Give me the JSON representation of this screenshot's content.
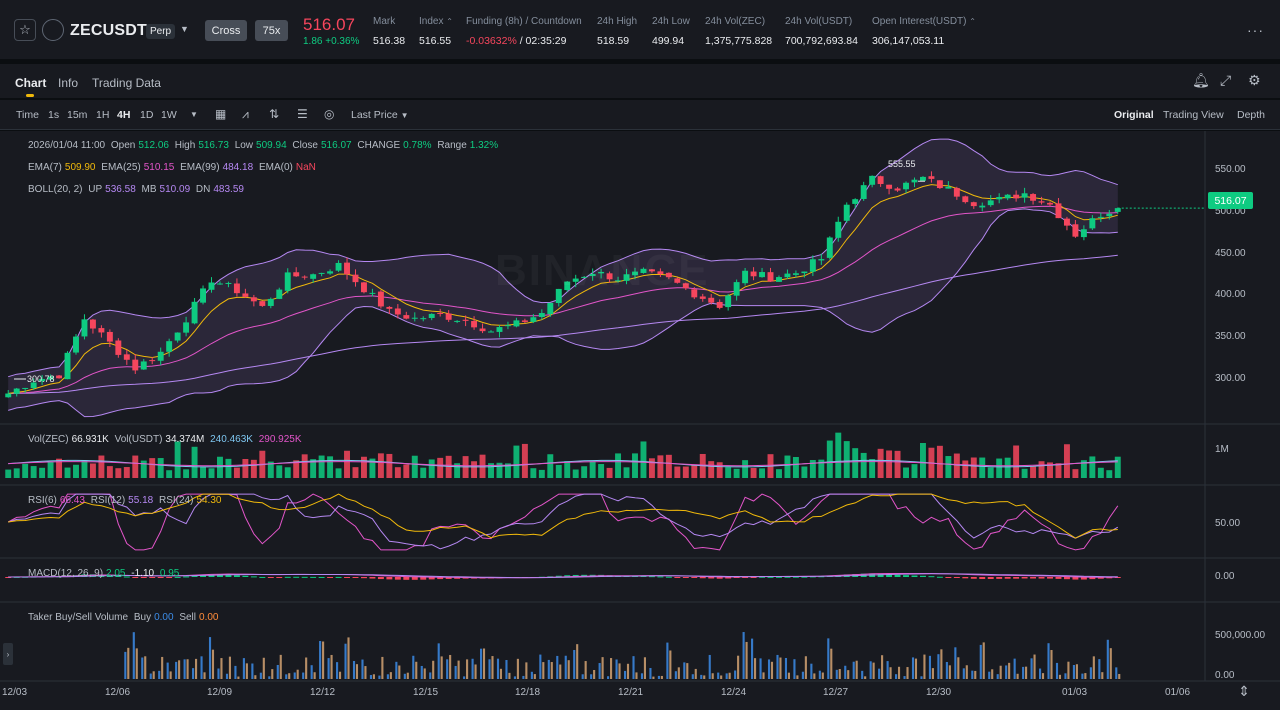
{
  "header": {
    "symbol": "ZECUSDT",
    "contract_type": "Perp",
    "margin_mode": "Cross",
    "leverage": "75x",
    "last_price": "516.07",
    "price_change": "1.86 +0.36%",
    "stats": [
      {
        "label": "Mark",
        "value": "516.38",
        "highlight": false
      },
      {
        "label": "Index",
        "value": "516.55",
        "highlight": false
      },
      {
        "label": "Funding (8h) / Countdown",
        "value": "-0.03632%",
        "extra": " / 02:35:29",
        "highlight": true
      },
      {
        "label": "24h High",
        "value": "518.59",
        "highlight": false
      },
      {
        "label": "24h Low",
        "value": "499.94",
        "highlight": false
      },
      {
        "label": "24h Vol(ZEC)",
        "value": "1,375,775.828",
        "highlight": false
      },
      {
        "label": "24h Vol(USDT)",
        "value": "700,792,693.84",
        "highlight": false
      },
      {
        "label": "Open Interest(USDT)",
        "value": "306,147,053.11",
        "highlight": false
      }
    ]
  },
  "tabs": [
    {
      "label": "Chart",
      "active": true
    },
    {
      "label": "Info",
      "active": false
    },
    {
      "label": "Trading Data",
      "active": false
    }
  ],
  "toolbar": {
    "time_label": "Time",
    "intervals": [
      "1s",
      "15m",
      "1H",
      "4H",
      "1D",
      "1W"
    ],
    "active_interval": "4H",
    "price_type": "Last Price",
    "views": [
      "Original",
      "Trading View",
      "Depth"
    ],
    "active_view": "Original"
  },
  "legend": {
    "candle_date": "2026/01/04 11:00",
    "open_label": "Open",
    "open": "512.06",
    "high_label": "High",
    "high": "516.73",
    "low_label": "Low",
    "low": "509.94",
    "close_label": "Close",
    "close": "516.07",
    "change_label": "CHANGE",
    "change": "0.78%",
    "range_label": "Range",
    "range": "1.32%",
    "ema7_label": "EMA(7)",
    "ema7": "509.90",
    "ema25_label": "EMA(25)",
    "ema25": "510.15",
    "ema99_label": "EMA(99)",
    "ema99": "484.18",
    "ema0_label": "EMA(0)",
    "ema0": "NaN",
    "boll_label": "BOLL(20, 2)",
    "up_label": "UP",
    "up": "536.58",
    "mb_label": "MB",
    "mb": "510.09",
    "dn_label": "DN",
    "dn": "483.59",
    "vol_label": "Vol(ZEC)",
    "vol_zec": "66.931K",
    "volusdt_label": "Vol(USDT)",
    "vol_usdt": "34.374M",
    "vol_ma1": "240.463K",
    "vol_ma2": "290.925K",
    "rsi6_label": "RSI(6)",
    "rsi6": "66.43",
    "rsi12_label": "RSI(12)",
    "rsi12": "55.18",
    "rsi24_label": "RSI(24)",
    "rsi24": "54.30",
    "macd_label": "MACD(12, 26, 9)",
    "macd_1": "2.05",
    "macd_2": "-1.10",
    "macd_3": "0.95",
    "taker_label": "Taker Buy/Sell Volume",
    "buy_label": "Buy",
    "buy": "0.00",
    "sell_label": "Sell",
    "sell": "0.00"
  },
  "price_axis": [
    "550.00",
    "500.00",
    "450.00",
    "400.00",
    "350.00",
    "300.00"
  ],
  "current_price_tag": "516.07",
  "high_marker": "555.55",
  "low_marker": "300.78",
  "volume_axis": [
    "1M"
  ],
  "rsi_axis": [
    "50.00"
  ],
  "macd_axis": [
    "0.00"
  ],
  "taker_axis": [
    "500,000.00",
    "0.00"
  ],
  "date_axis": [
    "12/03",
    "12/06",
    "12/09",
    "12/12",
    "12/15",
    "12/18",
    "12/21",
    "12/24",
    "12/27",
    "12/30",
    "01/03",
    "01/06"
  ],
  "watermark": "BINANCE",
  "colors": {
    "up": "#0ecb81",
    "down": "#f6465d",
    "accent": "#f0b90b",
    "boll": "#b588f2",
    "ema7": "#f0b90b",
    "ema25": "#e255c9",
    "ema99": "#b588f2"
  },
  "chart_data": {
    "type": "candlestick",
    "interval": "4H",
    "ylim": [
      280,
      575
    ],
    "dates": [
      "12/03",
      "12/06",
      "12/09",
      "12/12",
      "12/15",
      "12/18",
      "12/21",
      "12/24",
      "12/27",
      "12/30",
      "01/03",
      "01/06"
    ],
    "close_path": [
      [
        0,
        318
      ],
      [
        3,
        332
      ],
      [
        6,
        338
      ],
      [
        9,
        398
      ],
      [
        12,
        372
      ],
      [
        15,
        345
      ],
      [
        18,
        362
      ],
      [
        21,
        398
      ],
      [
        24,
        440
      ],
      [
        27,
        428
      ],
      [
        30,
        410
      ],
      [
        33,
        443
      ],
      [
        36,
        445
      ],
      [
        39,
        455
      ],
      [
        42,
        430
      ],
      [
        45,
        405
      ],
      [
        48,
        398
      ],
      [
        51,
        402
      ],
      [
        54,
        396
      ],
      [
        57,
        385
      ],
      [
        60,
        392
      ],
      [
        63,
        404
      ],
      [
        66,
        438
      ],
      [
        69,
        448
      ],
      [
        72,
        441
      ],
      [
        75,
        447
      ],
      [
        78,
        440
      ],
      [
        81,
        425
      ],
      [
        84,
        412
      ],
      [
        87,
        447
      ],
      [
        90,
        442
      ],
      [
        93,
        447
      ],
      [
        96,
        462
      ],
      [
        99,
        520
      ],
      [
        102,
        547
      ],
      [
        105,
        538
      ],
      [
        108,
        548
      ],
      [
        111,
        536
      ],
      [
        114,
        522
      ],
      [
        117,
        525
      ],
      [
        120,
        532
      ],
      [
        123,
        520
      ],
      [
        126,
        488
      ],
      [
        129,
        510
      ],
      [
        131,
        516.07
      ]
    ],
    "last": {
      "open": 512.06,
      "high": 516.73,
      "low": 509.94,
      "close": 516.07
    },
    "extremes": {
      "high": 555.55,
      "low": 300.78
    }
  }
}
